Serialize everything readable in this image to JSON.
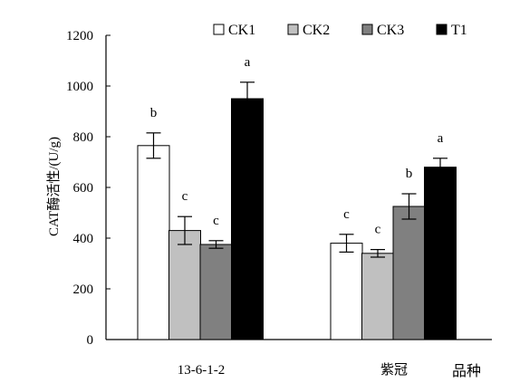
{
  "chart_data": {
    "type": "bar",
    "ylabel": "CAT酶活性/(U/g)",
    "xlabel": "品种",
    "ylim": [
      0,
      1200
    ],
    "yticks": [
      0,
      200,
      400,
      600,
      800,
      1000,
      1200
    ],
    "grid": false,
    "legend_position": "top-right",
    "categories": [
      "13-6-1-2",
      "紫冠"
    ],
    "series": [
      {
        "name": "CK1",
        "color": "#ffffff",
        "values": [
          765,
          380
        ],
        "errors": [
          50,
          35
        ],
        "labels": [
          "b",
          "c"
        ]
      },
      {
        "name": "CK2",
        "color": "#c0c0c0",
        "values": [
          430,
          340
        ],
        "errors": [
          55,
          15
        ],
        "labels": [
          "c",
          "c"
        ]
      },
      {
        "name": "CK3",
        "color": "#808080",
        "values": [
          375,
          525
        ],
        "errors": [
          15,
          50
        ],
        "labels": [
          "c",
          "b"
        ]
      },
      {
        "name": "T1",
        "color": "#000000",
        "values": [
          950,
          680
        ],
        "errors": [
          65,
          35
        ],
        "labels": [
          "a",
          "a"
        ]
      }
    ]
  }
}
